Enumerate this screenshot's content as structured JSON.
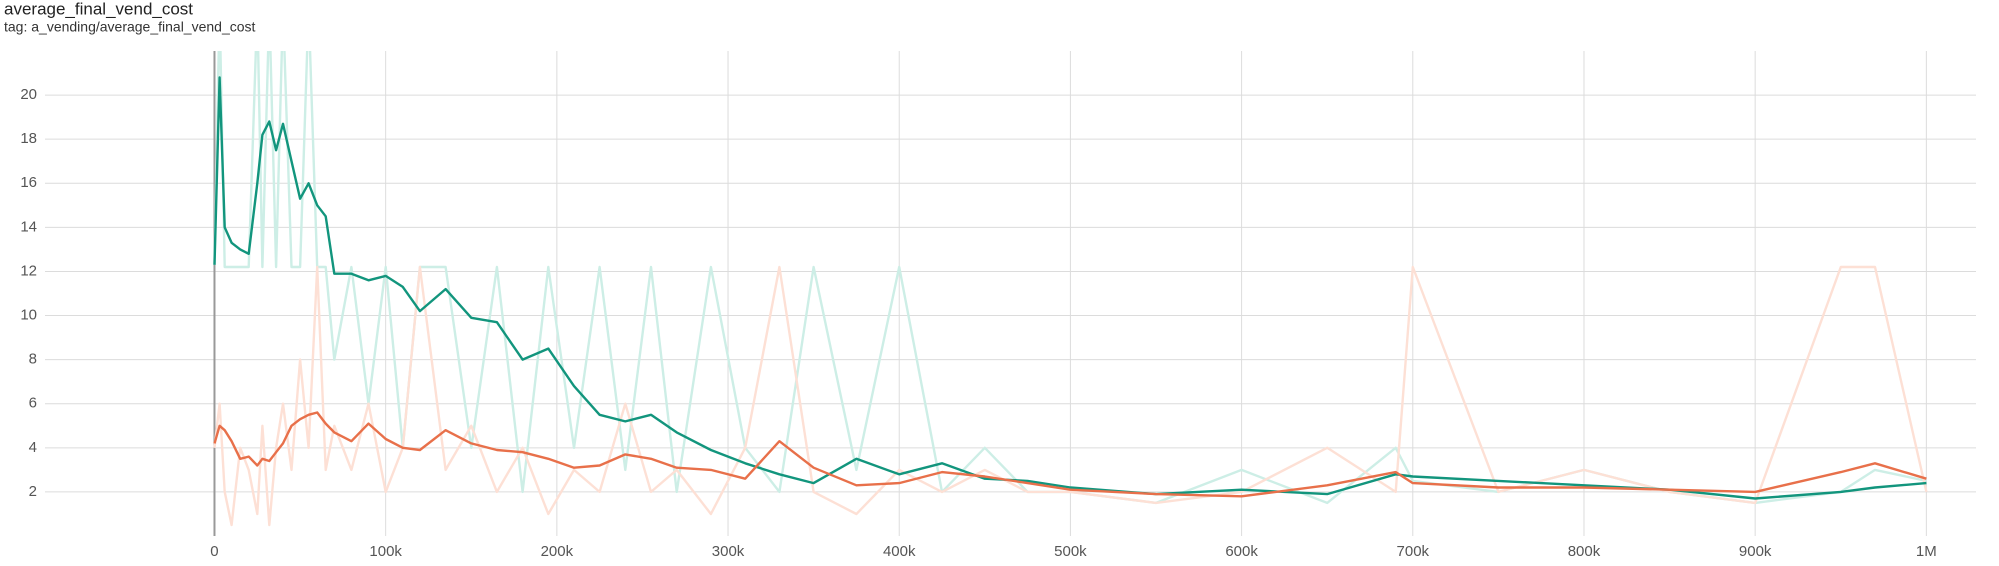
{
  "chart_data": {
    "type": "line",
    "title": "average_final_vend_cost",
    "subtitle": "tag: a_vending/average_final_vend_cost",
    "x": [
      0,
      3000,
      6000,
      10000,
      15000,
      20000,
      25000,
      28000,
      32000,
      36000,
      40000,
      45000,
      50000,
      55000,
      60000,
      65000,
      70000,
      80000,
      90000,
      100000,
      110000,
      120000,
      135000,
      150000,
      165000,
      180000,
      195000,
      210000,
      225000,
      240000,
      255000,
      270000,
      290000,
      310000,
      330000,
      350000,
      375000,
      400000,
      425000,
      450000,
      475000,
      500000,
      550000,
      600000,
      650000,
      690000,
      700000,
      750000,
      800000,
      850000,
      900000,
      950000,
      970000,
      1000000
    ],
    "series": [
      {
        "color": "#cdeee6",
        "values": [
          12.3,
          24,
          12.2,
          12.2,
          12.2,
          12.2,
          24,
          12.2,
          24,
          12.2,
          24,
          12.2,
          12.2,
          24,
          12.2,
          12.2,
          8,
          12.2,
          6,
          12.2,
          4,
          12.2,
          12.2,
          4,
          12.2,
          2,
          12.2,
          4,
          12.2,
          3,
          12.2,
          2,
          12.2,
          4,
          2,
          12.2,
          3,
          12.2,
          2,
          4,
          2,
          2,
          1.5,
          3,
          1.5,
          4,
          2.5,
          2,
          3,
          2,
          1.5,
          2,
          3,
          2.5
        ]
      },
      {
        "color": "#fde0d5",
        "values": [
          4,
          6,
          2,
          0.5,
          4,
          3,
          1,
          5,
          0.5,
          4,
          6,
          3,
          8,
          4,
          12.2,
          3,
          5,
          3,
          6,
          2,
          4,
          12.2,
          3,
          5,
          2,
          4,
          1,
          3,
          2,
          6,
          2,
          3,
          1,
          4,
          12.2,
          2,
          1,
          3,
          2,
          3,
          2,
          2,
          1.5,
          2,
          4,
          2,
          12.2,
          2,
          3,
          2,
          1.5,
          12.2,
          12.2,
          2
        ]
      },
      {
        "color": "#12957d",
        "values": [
          12.3,
          20.8,
          14,
          13.3,
          13,
          12.8,
          16,
          18.2,
          18.8,
          17.5,
          18.7,
          17,
          15.3,
          16,
          15,
          14.5,
          11.9,
          11.9,
          11.6,
          11.8,
          11.3,
          10.2,
          11.2,
          9.9,
          9.7,
          8,
          8.5,
          6.8,
          5.5,
          5.2,
          5.5,
          4.7,
          3.9,
          3.3,
          2.8,
          2.4,
          3.5,
          2.8,
          3.3,
          2.6,
          2.5,
          2.2,
          1.9,
          2.1,
          1.9,
          2.8,
          2.7,
          2.5,
          2.3,
          2.1,
          1.7,
          2,
          2.2,
          2.4
        ]
      },
      {
        "color": "#e8704a",
        "values": [
          4.2,
          5,
          4.8,
          4.3,
          3.5,
          3.6,
          3.2,
          3.5,
          3.4,
          3.8,
          4.2,
          5,
          5.3,
          5.5,
          5.6,
          5.1,
          4.7,
          4.3,
          5.1,
          4.4,
          4,
          3.9,
          4.8,
          4.2,
          3.9,
          3.8,
          3.5,
          3.1,
          3.2,
          3.7,
          3.5,
          3.1,
          3,
          2.6,
          4.3,
          3.1,
          2.3,
          2.4,
          2.9,
          2.7,
          2.4,
          2.1,
          1.9,
          1.8,
          2.3,
          2.9,
          2.4,
          2.2,
          2.2,
          2.1,
          2,
          2.9,
          3.3,
          2.6
        ]
      }
    ],
    "xlim": [
      -99000,
      1029000
    ],
    "ylim": [
      0,
      22
    ],
    "xticks": [
      0,
      {
        "value": 100000,
        "label": "100k"
      },
      {
        "value": 200000,
        "label": "200k"
      },
      {
        "value": 300000,
        "label": "300k"
      },
      {
        "value": 400000,
        "label": "400k"
      },
      {
        "value": 500000,
        "label": "500k"
      },
      {
        "value": 600000,
        "label": "600k"
      },
      {
        "value": 700000,
        "label": "700k"
      },
      {
        "value": 800000,
        "label": "800k"
      },
      {
        "value": 900000,
        "label": "900k"
      },
      {
        "value": 1000000,
        "label": "1M"
      }
    ],
    "yticks": [
      2,
      4,
      6,
      8,
      10,
      12,
      14,
      16,
      18,
      20
    ],
    "grid": true
  }
}
